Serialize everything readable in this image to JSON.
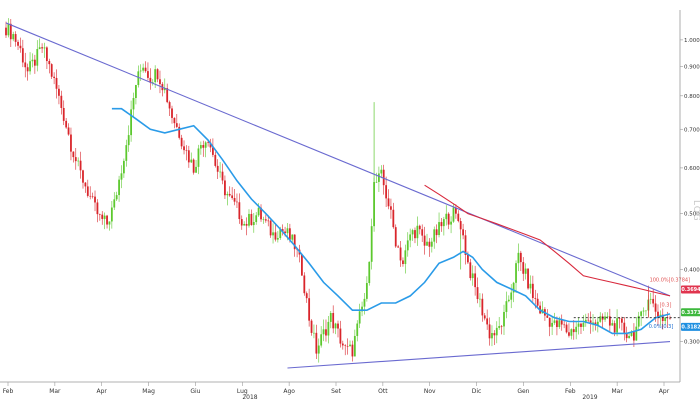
{
  "chart_data": {
    "type": "candlestick",
    "y_scale": "log",
    "y_unit_label": "LOG",
    "ylim": [
      0.27,
      1.1
    ],
    "x_ticks": [
      "Feb",
      "Mar",
      "Apr",
      "Mag",
      "Giu",
      "Lug",
      "Ago",
      "Set",
      "Ott",
      "Nov",
      "Dic",
      "Gen",
      "Feb",
      "Mar",
      "Apr"
    ],
    "x_years": [
      "2018",
      "2019"
    ],
    "y_ticks": [
      {
        "label": "1.0000",
        "value": 1.0
      },
      {
        "label": "0.9000",
        "value": 0.9
      },
      {
        "label": "0.8000",
        "value": 0.8
      },
      {
        "label": "0.7000",
        "value": 0.7
      },
      {
        "label": "0.6000",
        "value": 0.6
      },
      {
        "label": "0.5000",
        "value": 0.5
      },
      {
        "label": "0.4000",
        "value": 0.4
      },
      {
        "label": "0.3000",
        "value": 0.3
      }
    ],
    "price_badges": [
      {
        "label": "0.3694",
        "value": 0.3694,
        "color": "#e0344e"
      },
      {
        "label": "0.3373",
        "value": 0.3373,
        "color": "#3db83d"
      },
      {
        "label": "0.3182",
        "value": 0.3182,
        "color": "#1e8fe0"
      }
    ],
    "annotations": [
      {
        "label": "100.0%[0.3784]",
        "color": "#e05050"
      },
      {
        "label": "[0.3]",
        "color": "#e05050"
      },
      {
        "label": "0.0%[0.3]",
        "color": "#1e6fd0"
      }
    ],
    "closes": [
      [
        0,
        1.05
      ],
      [
        3,
        1.02
      ],
      [
        6,
        0.96
      ],
      [
        9,
        0.88
      ],
      [
        12,
        0.92
      ],
      [
        15,
        0.97
      ],
      [
        18,
        0.9
      ],
      [
        21,
        0.82
      ],
      [
        24,
        0.74
      ],
      [
        27,
        0.66
      ],
      [
        30,
        0.6
      ],
      [
        33,
        0.56
      ],
      [
        36,
        0.52
      ],
      [
        39,
        0.49
      ],
      [
        42,
        0.48
      ],
      [
        45,
        0.52
      ],
      [
        48,
        0.6
      ],
      [
        51,
        0.7
      ],
      [
        54,
        0.84
      ],
      [
        57,
        0.91
      ],
      [
        60,
        0.86
      ],
      [
        63,
        0.88
      ],
      [
        66,
        0.82
      ],
      [
        69,
        0.74
      ],
      [
        72,
        0.69
      ],
      [
        75,
        0.64
      ],
      [
        78,
        0.6
      ],
      [
        81,
        0.66
      ],
      [
        84,
        0.68
      ],
      [
        87,
        0.61
      ],
      [
        90,
        0.56
      ],
      [
        93,
        0.53
      ],
      [
        96,
        0.51
      ],
      [
        99,
        0.48
      ],
      [
        102,
        0.49
      ],
      [
        105,
        0.5
      ],
      [
        108,
        0.48
      ],
      [
        111,
        0.46
      ],
      [
        114,
        0.47
      ],
      [
        117,
        0.46
      ],
      [
        120,
        0.44
      ],
      [
        123,
        0.4
      ],
      [
        126,
        0.33
      ],
      [
        129,
        0.29
      ],
      [
        132,
        0.31
      ],
      [
        135,
        0.33
      ],
      [
        138,
        0.31
      ],
      [
        141,
        0.29
      ],
      [
        144,
        0.29
      ],
      [
        147,
        0.33
      ],
      [
        150,
        0.37
      ],
      [
        153,
        0.56
      ],
      [
        156,
        0.58
      ],
      [
        159,
        0.52
      ],
      [
        162,
        0.45
      ],
      [
        165,
        0.41
      ],
      [
        168,
        0.46
      ],
      [
        171,
        0.47
      ],
      [
        174,
        0.44
      ],
      [
        177,
        0.45
      ],
      [
        180,
        0.47
      ],
      [
        183,
        0.49
      ],
      [
        186,
        0.5
      ],
      [
        189,
        0.48
      ],
      [
        192,
        0.41
      ],
      [
        195,
        0.37
      ],
      [
        198,
        0.34
      ],
      [
        201,
        0.31
      ],
      [
        204,
        0.31
      ],
      [
        207,
        0.33
      ],
      [
        210,
        0.37
      ],
      [
        213,
        0.42
      ],
      [
        216,
        0.39
      ],
      [
        219,
        0.36
      ],
      [
        222,
        0.34
      ],
      [
        225,
        0.33
      ],
      [
        228,
        0.32
      ],
      [
        231,
        0.32
      ],
      [
        234,
        0.31
      ],
      [
        237,
        0.32
      ],
      [
        240,
        0.32
      ],
      [
        243,
        0.33
      ],
      [
        246,
        0.32
      ],
      [
        249,
        0.33
      ],
      [
        252,
        0.32
      ],
      [
        255,
        0.32
      ],
      [
        258,
        0.31
      ],
      [
        261,
        0.31
      ],
      [
        264,
        0.33
      ],
      [
        267,
        0.36
      ],
      [
        270,
        0.34
      ],
      [
        273,
        0.33
      ],
      [
        276,
        0.33
      ]
    ],
    "ma_blue": [
      [
        44,
        0.76
      ],
      [
        48,
        0.76
      ],
      [
        54,
        0.73
      ],
      [
        60,
        0.7
      ],
      [
        66,
        0.69
      ],
      [
        72,
        0.7
      ],
      [
        78,
        0.71
      ],
      [
        84,
        0.67
      ],
      [
        90,
        0.62
      ],
      [
        96,
        0.57
      ],
      [
        102,
        0.53
      ],
      [
        108,
        0.5
      ],
      [
        114,
        0.47
      ],
      [
        120,
        0.44
      ],
      [
        126,
        0.41
      ],
      [
        132,
        0.38
      ],
      [
        138,
        0.36
      ],
      [
        144,
        0.34
      ],
      [
        150,
        0.34
      ],
      [
        156,
        0.35
      ],
      [
        162,
        0.35
      ],
      [
        168,
        0.36
      ],
      [
        174,
        0.38
      ],
      [
        180,
        0.41
      ],
      [
        186,
        0.42
      ],
      [
        190,
        0.43
      ],
      [
        194,
        0.42
      ],
      [
        198,
        0.4
      ],
      [
        204,
        0.38
      ],
      [
        210,
        0.37
      ],
      [
        216,
        0.36
      ],
      [
        222,
        0.34
      ],
      [
        228,
        0.33
      ],
      [
        234,
        0.325
      ],
      [
        240,
        0.325
      ],
      [
        246,
        0.32
      ],
      [
        252,
        0.31
      ],
      [
        258,
        0.31
      ],
      [
        264,
        0.315
      ],
      [
        270,
        0.33
      ],
      [
        276,
        0.335
      ]
    ],
    "ma_red": [
      [
        174,
        0.56
      ],
      [
        180,
        0.54
      ],
      [
        186,
        0.52
      ],
      [
        192,
        0.5
      ],
      [
        198,
        0.49
      ],
      [
        204,
        0.48
      ],
      [
        210,
        0.47
      ],
      [
        216,
        0.46
      ],
      [
        222,
        0.45
      ],
      [
        228,
        0.43
      ],
      [
        234,
        0.41
      ],
      [
        240,
        0.39
      ],
      [
        246,
        0.385
      ],
      [
        252,
        0.38
      ],
      [
        258,
        0.375
      ],
      [
        264,
        0.37
      ],
      [
        270,
        0.365
      ],
      [
        276,
        0.36
      ]
    ],
    "trendlines": [
      {
        "name": "resistance",
        "color": "#6a6ad0",
        "from": [
          0,
          1.07
        ],
        "to": [
          276,
          0.36
        ]
      },
      {
        "name": "support",
        "color": "#6a6ad0",
        "from": [
          117,
          0.27
        ],
        "to": [
          276,
          0.3
        ]
      }
    ],
    "dashed_level": 0.33
  }
}
